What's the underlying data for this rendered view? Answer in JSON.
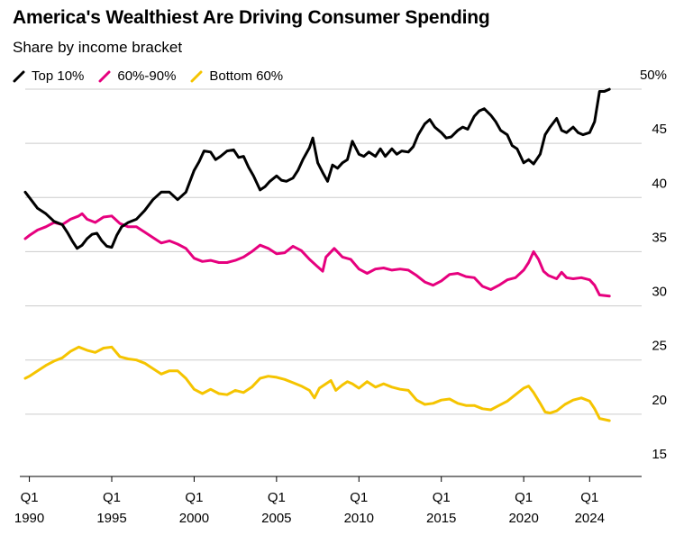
{
  "chart_data": {
    "type": "line",
    "title": "America's Wealthiest Are Driving Consumer Spending",
    "subtitle": "Share by income bracket",
    "ylabel_unit": "%",
    "ylim": [
      13,
      52
    ],
    "yticks": [
      15,
      20,
      25,
      30,
      35,
      40,
      45,
      50
    ],
    "ytick_labels": [
      "15",
      "20",
      "25",
      "30",
      "35",
      "40",
      "45",
      "50%"
    ],
    "xlim": [
      1989.75,
      2026.5
    ],
    "xticks": [
      {
        "x": 1990,
        "top": "Q1",
        "bottom": "1990"
      },
      {
        "x": 1995,
        "top": "Q1",
        "bottom": "1995"
      },
      {
        "x": 2000,
        "top": "Q1",
        "bottom": "2000"
      },
      {
        "x": 2005,
        "top": "Q1",
        "bottom": "2005"
      },
      {
        "x": 2010,
        "top": "Q1",
        "bottom": "2010"
      },
      {
        "x": 2015,
        "top": "Q1",
        "bottom": "2015"
      },
      {
        "x": 2020,
        "top": "Q1",
        "bottom": "2020"
      },
      {
        "x": 2024,
        "top": "Q1",
        "bottom": "2024"
      }
    ],
    "series": [
      {
        "name": "Top 10%",
        "color": "#000000",
        "points": [
          [
            1989.75,
            40.5
          ],
          [
            1990.0,
            40.0
          ],
          [
            1990.5,
            39.0
          ],
          [
            1991.0,
            38.5
          ],
          [
            1991.5,
            37.8
          ],
          [
            1992.0,
            37.5
          ],
          [
            1992.3,
            36.8
          ],
          [
            1992.6,
            36.0
          ],
          [
            1992.9,
            35.3
          ],
          [
            1993.2,
            35.6
          ],
          [
            1993.5,
            36.2
          ],
          [
            1993.8,
            36.6
          ],
          [
            1994.1,
            36.7
          ],
          [
            1994.4,
            36.0
          ],
          [
            1994.7,
            35.5
          ],
          [
            1995.0,
            35.4
          ],
          [
            1995.3,
            36.5
          ],
          [
            1995.6,
            37.3
          ],
          [
            1996.0,
            37.7
          ],
          [
            1996.5,
            38.0
          ],
          [
            1997.0,
            38.8
          ],
          [
            1997.5,
            39.8
          ],
          [
            1998.0,
            40.5
          ],
          [
            1998.5,
            40.5
          ],
          [
            1999.0,
            39.8
          ],
          [
            1999.5,
            40.5
          ],
          [
            2000.0,
            42.5
          ],
          [
            2000.3,
            43.3
          ],
          [
            2000.6,
            44.3
          ],
          [
            2001.0,
            44.2
          ],
          [
            2001.3,
            43.5
          ],
          [
            2001.6,
            43.8
          ],
          [
            2002.0,
            44.3
          ],
          [
            2002.4,
            44.4
          ],
          [
            2002.7,
            43.7
          ],
          [
            2003.0,
            43.8
          ],
          [
            2003.3,
            42.8
          ],
          [
            2003.6,
            42.0
          ],
          [
            2004.0,
            40.7
          ],
          [
            2004.3,
            41.0
          ],
          [
            2004.6,
            41.5
          ],
          [
            2005.0,
            42.0
          ],
          [
            2005.3,
            41.6
          ],
          [
            2005.6,
            41.5
          ],
          [
            2006.0,
            41.8
          ],
          [
            2006.3,
            42.5
          ],
          [
            2006.6,
            43.5
          ],
          [
            2007.0,
            44.6
          ],
          [
            2007.2,
            45.5
          ],
          [
            2007.5,
            43.2
          ],
          [
            2007.8,
            42.3
          ],
          [
            2008.1,
            41.5
          ],
          [
            2008.4,
            43.0
          ],
          [
            2008.7,
            42.7
          ],
          [
            2009.0,
            43.2
          ],
          [
            2009.3,
            43.5
          ],
          [
            2009.6,
            45.2
          ],
          [
            2010.0,
            44.0
          ],
          [
            2010.3,
            43.8
          ],
          [
            2010.6,
            44.2
          ],
          [
            2011.0,
            43.8
          ],
          [
            2011.3,
            44.5
          ],
          [
            2011.6,
            43.8
          ],
          [
            2012.0,
            44.5
          ],
          [
            2012.3,
            44.0
          ],
          [
            2012.6,
            44.3
          ],
          [
            2013.0,
            44.2
          ],
          [
            2013.3,
            44.7
          ],
          [
            2013.6,
            45.8
          ],
          [
            2014.0,
            46.8
          ],
          [
            2014.3,
            47.2
          ],
          [
            2014.6,
            46.5
          ],
          [
            2015.0,
            46.0
          ],
          [
            2015.3,
            45.5
          ],
          [
            2015.6,
            45.6
          ],
          [
            2016.0,
            46.2
          ],
          [
            2016.3,
            46.5
          ],
          [
            2016.6,
            46.3
          ],
          [
            2017.0,
            47.5
          ],
          [
            2017.3,
            48.0
          ],
          [
            2017.6,
            48.2
          ],
          [
            2018.0,
            47.6
          ],
          [
            2018.3,
            47.0
          ],
          [
            2018.6,
            46.2
          ],
          [
            2019.0,
            45.8
          ],
          [
            2019.3,
            44.8
          ],
          [
            2019.6,
            44.5
          ],
          [
            2020.0,
            43.2
          ],
          [
            2020.3,
            43.5
          ],
          [
            2020.6,
            43.1
          ],
          [
            2021.0,
            44.0
          ],
          [
            2021.3,
            45.8
          ],
          [
            2021.6,
            46.5
          ],
          [
            2022.0,
            47.3
          ],
          [
            2022.3,
            46.2
          ],
          [
            2022.6,
            46.0
          ],
          [
            2023.0,
            46.5
          ],
          [
            2023.3,
            46.0
          ],
          [
            2023.6,
            45.8
          ],
          [
            2024.0,
            46.0
          ],
          [
            2024.3,
            47.0
          ],
          [
            2024.6,
            49.8
          ],
          [
            2024.9,
            49.8
          ],
          [
            2025.2,
            50.0
          ]
        ]
      },
      {
        "name": "60%-90%",
        "color": "#e6007e",
        "points": [
          [
            1989.75,
            36.2
          ],
          [
            1990.0,
            36.5
          ],
          [
            1990.5,
            37.0
          ],
          [
            1991.0,
            37.3
          ],
          [
            1991.5,
            37.7
          ],
          [
            1992.0,
            37.5
          ],
          [
            1992.5,
            38.0
          ],
          [
            1993.0,
            38.3
          ],
          [
            1993.2,
            38.5
          ],
          [
            1993.5,
            38.0
          ],
          [
            1994.0,
            37.7
          ],
          [
            1994.5,
            38.2
          ],
          [
            1995.0,
            38.3
          ],
          [
            1995.5,
            37.6
          ],
          [
            1996.0,
            37.3
          ],
          [
            1996.5,
            37.3
          ],
          [
            1997.0,
            36.8
          ],
          [
            1997.5,
            36.3
          ],
          [
            1998.0,
            35.8
          ],
          [
            1998.5,
            36.0
          ],
          [
            1999.0,
            35.7
          ],
          [
            1999.5,
            35.3
          ],
          [
            2000.0,
            34.4
          ],
          [
            2000.5,
            34.1
          ],
          [
            2001.0,
            34.2
          ],
          [
            2001.5,
            34.0
          ],
          [
            2002.0,
            34.0
          ],
          [
            2002.5,
            34.2
          ],
          [
            2003.0,
            34.5
          ],
          [
            2003.5,
            35.0
          ],
          [
            2004.0,
            35.6
          ],
          [
            2004.5,
            35.3
          ],
          [
            2005.0,
            34.8
          ],
          [
            2005.5,
            34.9
          ],
          [
            2006.0,
            35.5
          ],
          [
            2006.5,
            35.1
          ],
          [
            2007.0,
            34.3
          ],
          [
            2007.5,
            33.6
          ],
          [
            2007.8,
            33.2
          ],
          [
            2008.0,
            34.5
          ],
          [
            2008.5,
            35.3
          ],
          [
            2009.0,
            34.5
          ],
          [
            2009.5,
            34.3
          ],
          [
            2010.0,
            33.4
          ],
          [
            2010.5,
            33.0
          ],
          [
            2011.0,
            33.4
          ],
          [
            2011.5,
            33.5
          ],
          [
            2012.0,
            33.3
          ],
          [
            2012.5,
            33.4
          ],
          [
            2013.0,
            33.3
          ],
          [
            2013.5,
            32.8
          ],
          [
            2014.0,
            32.2
          ],
          [
            2014.5,
            31.9
          ],
          [
            2015.0,
            32.3
          ],
          [
            2015.5,
            32.9
          ],
          [
            2016.0,
            33.0
          ],
          [
            2016.5,
            32.7
          ],
          [
            2017.0,
            32.6
          ],
          [
            2017.5,
            31.8
          ],
          [
            2018.0,
            31.5
          ],
          [
            2018.5,
            31.9
          ],
          [
            2019.0,
            32.4
          ],
          [
            2019.5,
            32.6
          ],
          [
            2020.0,
            33.3
          ],
          [
            2020.3,
            34.0
          ],
          [
            2020.6,
            35.0
          ],
          [
            2020.9,
            34.3
          ],
          [
            2021.2,
            33.2
          ],
          [
            2021.5,
            32.8
          ],
          [
            2022.0,
            32.5
          ],
          [
            2022.3,
            33.1
          ],
          [
            2022.6,
            32.6
          ],
          [
            2023.0,
            32.5
          ],
          [
            2023.5,
            32.6
          ],
          [
            2024.0,
            32.4
          ],
          [
            2024.3,
            31.9
          ],
          [
            2024.6,
            31.0
          ],
          [
            2025.2,
            30.9
          ]
        ]
      },
      {
        "name": "Bottom 60%",
        "color": "#f5c400",
        "points": [
          [
            1989.75,
            23.3
          ],
          [
            1990.0,
            23.5
          ],
          [
            1990.5,
            24.0
          ],
          [
            1991.0,
            24.5
          ],
          [
            1991.5,
            24.9
          ],
          [
            1992.0,
            25.2
          ],
          [
            1992.5,
            25.8
          ],
          [
            1993.0,
            26.2
          ],
          [
            1993.5,
            25.9
          ],
          [
            1994.0,
            25.7
          ],
          [
            1994.5,
            26.1
          ],
          [
            1995.0,
            26.2
          ],
          [
            1995.5,
            25.3
          ],
          [
            1996.0,
            25.1
          ],
          [
            1996.5,
            25.0
          ],
          [
            1997.0,
            24.7
          ],
          [
            1997.5,
            24.2
          ],
          [
            1998.0,
            23.7
          ],
          [
            1998.5,
            24.0
          ],
          [
            1999.0,
            24.0
          ],
          [
            1999.5,
            23.3
          ],
          [
            2000.0,
            22.3
          ],
          [
            2000.5,
            21.9
          ],
          [
            2001.0,
            22.3
          ],
          [
            2001.5,
            21.9
          ],
          [
            2002.0,
            21.8
          ],
          [
            2002.5,
            22.2
          ],
          [
            2003.0,
            22.0
          ],
          [
            2003.5,
            22.5
          ],
          [
            2004.0,
            23.3
          ],
          [
            2004.5,
            23.5
          ],
          [
            2005.0,
            23.4
          ],
          [
            2005.5,
            23.2
          ],
          [
            2006.0,
            22.9
          ],
          [
            2006.5,
            22.6
          ],
          [
            2007.0,
            22.2
          ],
          [
            2007.3,
            21.5
          ],
          [
            2007.6,
            22.4
          ],
          [
            2008.0,
            22.8
          ],
          [
            2008.3,
            23.1
          ],
          [
            2008.6,
            22.2
          ],
          [
            2009.0,
            22.7
          ],
          [
            2009.3,
            23.0
          ],
          [
            2009.6,
            22.8
          ],
          [
            2010.0,
            22.4
          ],
          [
            2010.5,
            23.0
          ],
          [
            2011.0,
            22.5
          ],
          [
            2011.5,
            22.8
          ],
          [
            2012.0,
            22.5
          ],
          [
            2012.5,
            22.3
          ],
          [
            2013.0,
            22.2
          ],
          [
            2013.5,
            21.3
          ],
          [
            2014.0,
            20.9
          ],
          [
            2014.5,
            21.0
          ],
          [
            2015.0,
            21.3
          ],
          [
            2015.5,
            21.4
          ],
          [
            2016.0,
            21.0
          ],
          [
            2016.5,
            20.8
          ],
          [
            2017.0,
            20.8
          ],
          [
            2017.5,
            20.5
          ],
          [
            2018.0,
            20.4
          ],
          [
            2018.5,
            20.8
          ],
          [
            2019.0,
            21.2
          ],
          [
            2019.5,
            21.8
          ],
          [
            2020.0,
            22.4
          ],
          [
            2020.3,
            22.6
          ],
          [
            2020.6,
            22.0
          ],
          [
            2021.0,
            21.0
          ],
          [
            2021.3,
            20.2
          ],
          [
            2021.6,
            20.1
          ],
          [
            2022.0,
            20.3
          ],
          [
            2022.5,
            20.9
          ],
          [
            2023.0,
            21.3
          ],
          [
            2023.5,
            21.5
          ],
          [
            2024.0,
            21.2
          ],
          [
            2024.3,
            20.5
          ],
          [
            2024.6,
            19.6
          ],
          [
            2025.2,
            19.4
          ]
        ]
      }
    ]
  }
}
